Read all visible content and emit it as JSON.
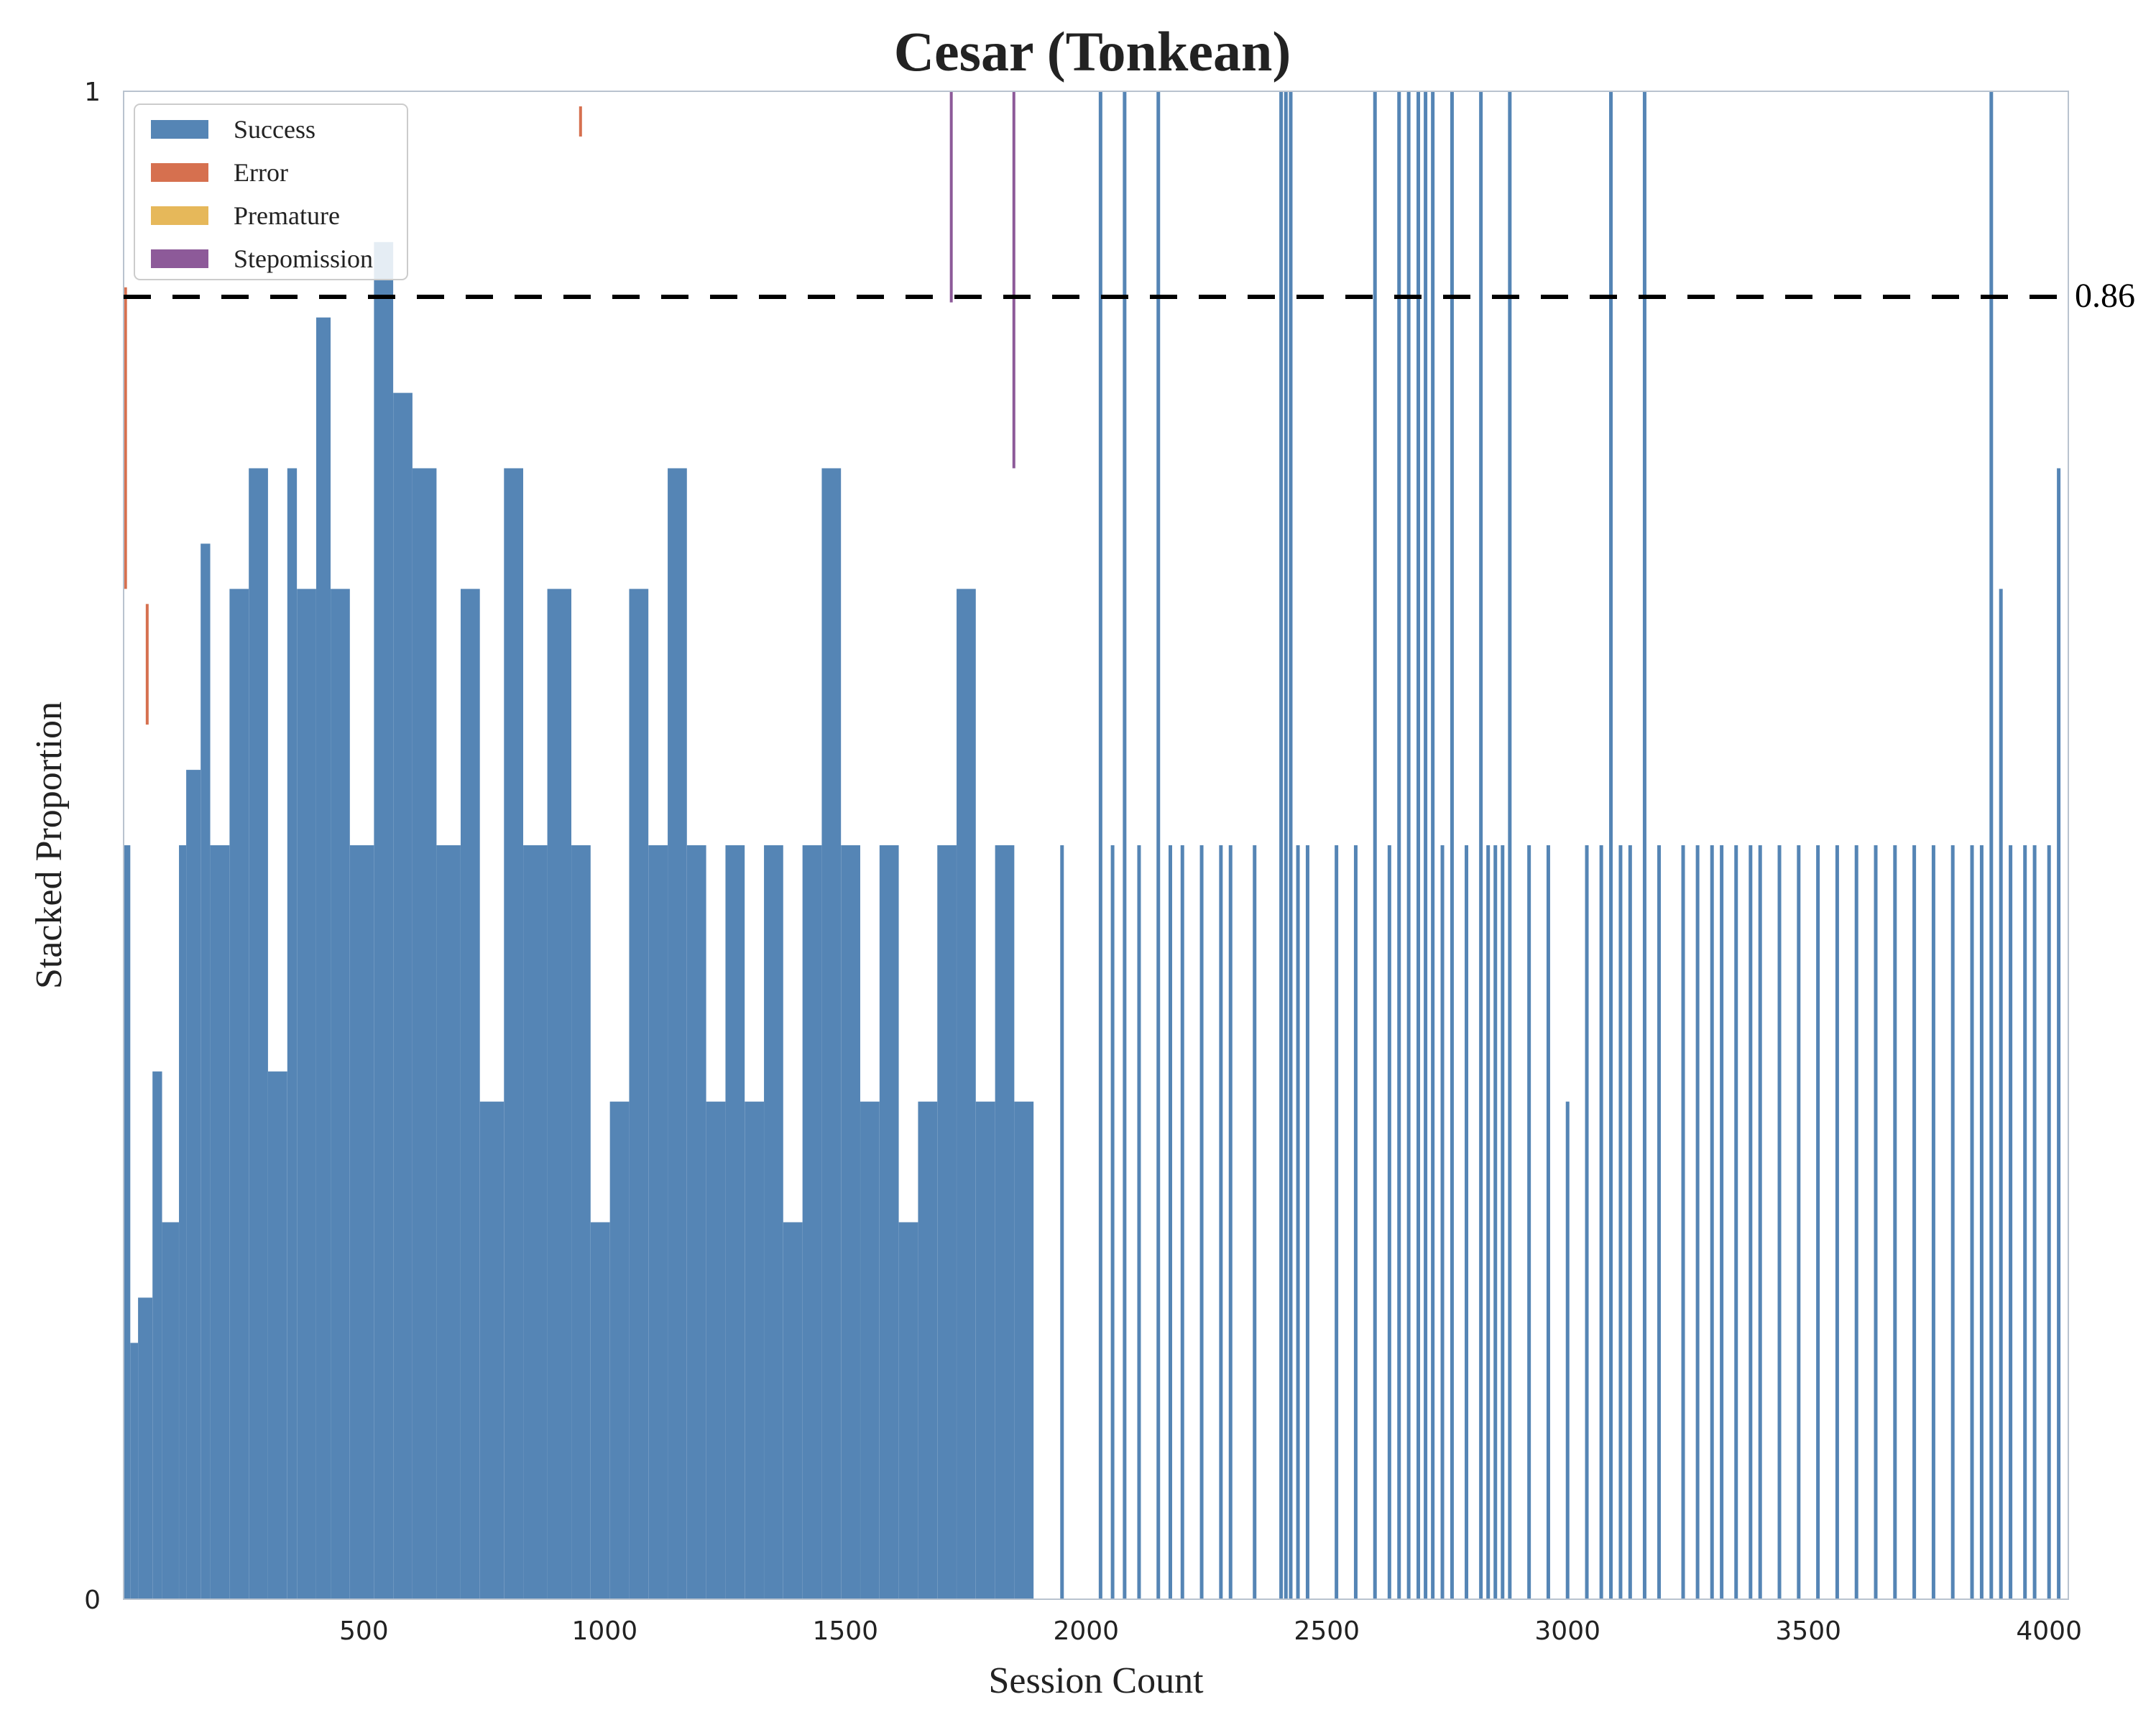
{
  "chart_data": {
    "type": "bar",
    "stacked": true,
    "title": "Cesar (Tonkean)",
    "xlabel": "Session Count",
    "ylabel": "Stacked Proportion",
    "xlim": [
      1,
      4040
    ],
    "ylim": [
      0,
      1
    ],
    "x_ticks": [
      500,
      1000,
      1500,
      2000,
      2500,
      3000,
      3500,
      4000
    ],
    "x_tick_labels": [
      "500",
      "1000",
      "1500",
      "2000",
      "2500",
      "3000",
      "3500",
      "4000"
    ],
    "y_ticks": [
      0,
      1
    ],
    "y_tick_labels": [
      "0",
      "1"
    ],
    "grid": false,
    "legend_position": "top-left",
    "reference_line": {
      "y": 0.86,
      "label": "0.86",
      "style": "dashed",
      "color": "#000000"
    },
    "series": [
      {
        "name": "Success",
        "color": "#5585b5"
      },
      {
        "name": "Error",
        "color": "#d6704f"
      },
      {
        "name": "Premature",
        "color": "#e6b85a"
      },
      {
        "name": "Stepomission",
        "color": "#8d5a99"
      }
    ],
    "success_segments": [
      [
        1,
        14,
        0.5
      ],
      [
        15,
        30,
        0.17
      ],
      [
        31,
        60,
        0.2
      ],
      [
        61,
        80,
        0.35
      ],
      [
        81,
        115,
        0.25
      ],
      [
        116,
        130,
        0.5
      ],
      [
        131,
        160,
        0.55
      ],
      [
        161,
        180,
        0.7
      ],
      [
        181,
        220,
        0.5
      ],
      [
        221,
        260,
        0.67
      ],
      [
        261,
        300,
        0.75
      ],
      [
        301,
        340,
        0.35
      ],
      [
        341,
        360,
        0.75
      ],
      [
        361,
        400,
        0.67
      ],
      [
        401,
        430,
        0.85
      ],
      [
        431,
        470,
        0.67
      ],
      [
        471,
        520,
        0.5
      ],
      [
        521,
        560,
        0.9
      ],
      [
        561,
        600,
        0.8
      ],
      [
        601,
        650,
        0.75
      ],
      [
        651,
        700,
        0.5
      ],
      [
        701,
        740,
        0.67
      ],
      [
        741,
        790,
        0.33
      ],
      [
        791,
        830,
        0.75
      ],
      [
        831,
        880,
        0.5
      ],
      [
        881,
        930,
        0.67
      ],
      [
        931,
        970,
        0.5
      ],
      [
        971,
        1010,
        0.25
      ],
      [
        1011,
        1050,
        0.33
      ],
      [
        1051,
        1090,
        0.67
      ],
      [
        1091,
        1130,
        0.5
      ],
      [
        1131,
        1170,
        0.75
      ],
      [
        1171,
        1210,
        0.5
      ],
      [
        1211,
        1250,
        0.33
      ],
      [
        1251,
        1290,
        0.5
      ],
      [
        1291,
        1330,
        0.33
      ],
      [
        1331,
        1370,
        0.5
      ],
      [
        1371,
        1410,
        0.25
      ],
      [
        1411,
        1450,
        0.5
      ],
      [
        1451,
        1490,
        0.75
      ],
      [
        1491,
        1530,
        0.5
      ],
      [
        1531,
        1570,
        0.33
      ],
      [
        1571,
        1610,
        0.5
      ],
      [
        1611,
        1650,
        0.25
      ],
      [
        1651,
        1690,
        0.33
      ],
      [
        1691,
        1730,
        0.5
      ],
      [
        1731,
        1770,
        0.67
      ],
      [
        1771,
        1810,
        0.33
      ],
      [
        1811,
        1850,
        0.5
      ],
      [
        1851,
        1890,
        0.33
      ]
    ],
    "sparse_success_bars": [
      [
        1950,
        0.5
      ],
      [
        2030,
        1.0
      ],
      [
        2055,
        0.5
      ],
      [
        2080,
        1.0
      ],
      [
        2110,
        0.5
      ],
      [
        2150,
        1.0
      ],
      [
        2175,
        0.5
      ],
      [
        2200,
        0.5
      ],
      [
        2240,
        0.5
      ],
      [
        2280,
        0.5
      ],
      [
        2300,
        0.5
      ],
      [
        2350,
        0.5
      ],
      [
        2405,
        1.0
      ],
      [
        2415,
        1.0
      ],
      [
        2425,
        1.0
      ],
      [
        2440,
        0.5
      ],
      [
        2460,
        0.5
      ],
      [
        2520,
        0.5
      ],
      [
        2560,
        0.5
      ],
      [
        2600,
        1.0
      ],
      [
        2630,
        0.5
      ],
      [
        2650,
        1.0
      ],
      [
        2670,
        1.0
      ],
      [
        2690,
        1.0
      ],
      [
        2705,
        1.0
      ],
      [
        2720,
        1.0
      ],
      [
        2740,
        0.5
      ],
      [
        2760,
        1.0
      ],
      [
        2790,
        0.5
      ],
      [
        2820,
        1.0
      ],
      [
        2835,
        0.5
      ],
      [
        2850,
        0.5
      ],
      [
        2865,
        0.5
      ],
      [
        2880,
        1.0
      ],
      [
        2920,
        0.5
      ],
      [
        2960,
        0.5
      ],
      [
        3000,
        0.33
      ],
      [
        3040,
        0.5
      ],
      [
        3070,
        0.5
      ],
      [
        3090,
        1.0
      ],
      [
        3110,
        0.5
      ],
      [
        3130,
        0.5
      ],
      [
        3160,
        1.0
      ],
      [
        3190,
        0.5
      ],
      [
        3240,
        0.5
      ],
      [
        3270,
        0.5
      ],
      [
        3300,
        0.5
      ],
      [
        3320,
        0.5
      ],
      [
        3350,
        0.5
      ],
      [
        3380,
        0.5
      ],
      [
        3400,
        0.5
      ],
      [
        3440,
        0.5
      ],
      [
        3480,
        0.5
      ],
      [
        3520,
        0.5
      ],
      [
        3560,
        0.5
      ],
      [
        3600,
        0.5
      ],
      [
        3640,
        0.5
      ],
      [
        3680,
        0.5
      ],
      [
        3720,
        0.5
      ],
      [
        3760,
        0.5
      ],
      [
        3800,
        0.5
      ],
      [
        3840,
        0.5
      ],
      [
        3860,
        0.5
      ],
      [
        3880,
        1.0
      ],
      [
        3900,
        0.67
      ],
      [
        3920,
        0.5
      ],
      [
        3950,
        0.5
      ],
      [
        3970,
        0.5
      ],
      [
        4000,
        0.5
      ],
      [
        4020,
        0.75
      ]
    ],
    "error_bars": [
      [
        5,
        0.67,
        0.2
      ],
      [
        50,
        0.58,
        0.08
      ],
      [
        950,
        0.97,
        0.02
      ]
    ],
    "stepomission_bars": [
      [
        1720,
        0.86,
        0.14
      ],
      [
        1850,
        0.75,
        0.25
      ]
    ]
  }
}
